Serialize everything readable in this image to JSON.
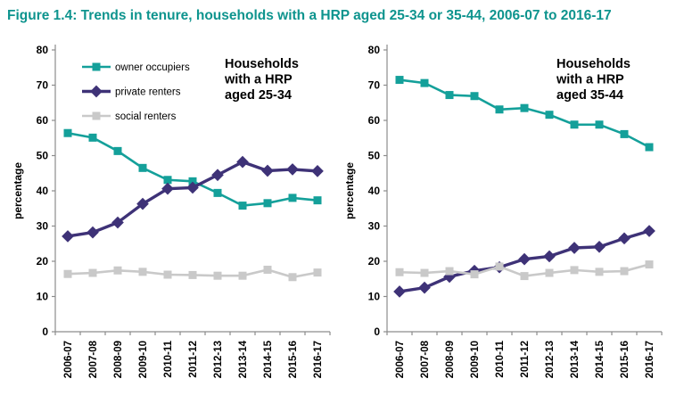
{
  "figure": {
    "title": "Figure 1.4: Trends in tenure, households with a HRP aged 25-34 or 35-44, 2006-07 to 2016-17"
  },
  "colors": {
    "title": "#0E948E",
    "owner_occupiers": "#14A09A",
    "private_renters": "#3E3277",
    "social_renters": "#C9C9C9",
    "axis": "#8C8C8C",
    "text": "#000000"
  },
  "chart_data": [
    {
      "type": "line",
      "title": "Households with a HRP aged 25-34",
      "annotation_lines": [
        "Households",
        "with a HRP",
        "aged 25-34"
      ],
      "ylabel": "percentage",
      "ylim": [
        0,
        80
      ],
      "ytick_step": 10,
      "grid": false,
      "show_legend": true,
      "legend_position": "top-left-inside",
      "categories": [
        "2006-07",
        "2007-08",
        "2008-09",
        "2009-10",
        "2010-11",
        "2011-12",
        "2012-13",
        "2013-14",
        "2014-15",
        "2015-16",
        "2016-17"
      ],
      "series": [
        {
          "key": "owner-occupiers",
          "name": "owner occupiers",
          "marker": "square",
          "color_key": "owner_occupiers",
          "values": [
            56.4,
            55.1,
            51.3,
            46.5,
            43.1,
            42.7,
            39.4,
            35.8,
            36.5,
            38.0,
            37.3
          ]
        },
        {
          "key": "private-renters",
          "name": "private renters",
          "marker": "diamond",
          "color_key": "private_renters",
          "values": [
            27.1,
            28.2,
            31.0,
            36.3,
            40.6,
            40.9,
            44.5,
            48.2,
            45.7,
            46.1,
            45.6
          ]
        },
        {
          "key": "social-renters",
          "name": "social renters",
          "marker": "square",
          "color_key": "social_renters",
          "values": [
            16.4,
            16.7,
            17.4,
            17.0,
            16.2,
            16.1,
            15.9,
            15.9,
            17.6,
            15.5,
            16.8
          ]
        }
      ]
    },
    {
      "type": "line",
      "title": "Households with a HRP aged 35-44",
      "annotation_lines": [
        "Households",
        "with a HRP",
        "aged 35-44"
      ],
      "ylabel": "percentage",
      "ylim": [
        0,
        80
      ],
      "ytick_step": 10,
      "grid": false,
      "show_legend": false,
      "legend_position": "none",
      "categories": [
        "2006-07",
        "2007-08",
        "2008-09",
        "2009-10",
        "2010-11",
        "2011-12",
        "2012-13",
        "2013-14",
        "2014-15",
        "2015-16",
        "2016-17"
      ],
      "series": [
        {
          "key": "owner-occupiers",
          "name": "owner occupiers",
          "marker": "square",
          "color_key": "owner_occupiers",
          "values": [
            71.5,
            70.6,
            67.2,
            66.9,
            63.1,
            63.5,
            61.6,
            58.8,
            58.8,
            56.1,
            52.4
          ]
        },
        {
          "key": "private-renters",
          "name": "private renters",
          "marker": "diamond",
          "color_key": "private_renters",
          "values": [
            11.4,
            12.5,
            15.6,
            17.3,
            18.3,
            20.6,
            21.4,
            23.8,
            24.1,
            26.5,
            28.6
          ]
        },
        {
          "key": "social-renters",
          "name": "social renters",
          "marker": "square",
          "color_key": "social_renters",
          "values": [
            16.9,
            16.7,
            17.2,
            16.3,
            18.5,
            15.8,
            16.7,
            17.5,
            17.0,
            17.2,
            19.1
          ]
        }
      ]
    }
  ]
}
